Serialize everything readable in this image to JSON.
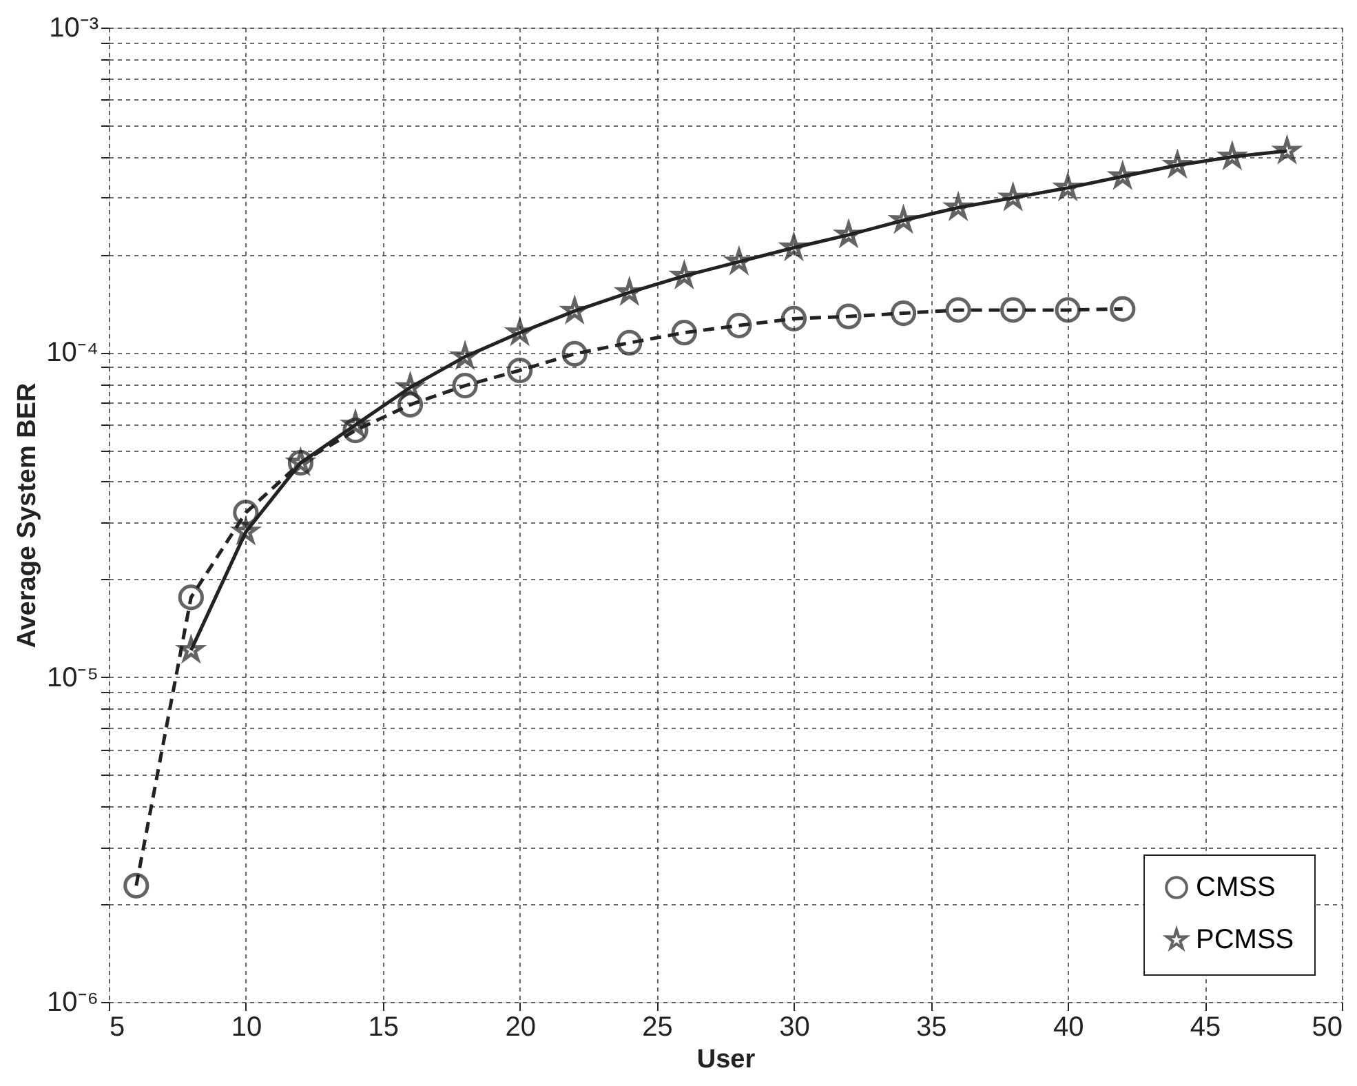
{
  "chart_data": {
    "type": "line",
    "xlabel": "User",
    "ylabel": "Average System BER",
    "log": "y",
    "grid": true,
    "legend": "bottom right",
    "xlim": [
      5,
      50
    ],
    "xticks": [
      5,
      10,
      15,
      20,
      25,
      30,
      35,
      40,
      45,
      50
    ],
    "ylim": [
      1e-06,
      0.001
    ],
    "yticks": [
      {
        "value": 1e-06,
        "label": "10⁻⁶"
      },
      {
        "value": 2e-06,
        "label": null
      },
      {
        "value": 3e-06,
        "label": null
      },
      {
        "value": 4e-06,
        "label": null
      },
      {
        "value": 5e-06,
        "label": null
      },
      {
        "value": 6e-06,
        "label": null
      },
      {
        "value": 7e-06,
        "label": null
      },
      {
        "value": 8e-06,
        "label": null
      },
      {
        "value": 9e-06,
        "label": null
      },
      {
        "value": 1e-05,
        "label": "10⁻⁵"
      },
      {
        "value": 2e-05,
        "label": null
      },
      {
        "value": 3e-05,
        "label": null
      },
      {
        "value": 4e-05,
        "label": null
      },
      {
        "value": 5e-05,
        "label": null
      },
      {
        "value": 6e-05,
        "label": null
      },
      {
        "value": 7e-05,
        "label": null
      },
      {
        "value": 8e-05,
        "label": null
      },
      {
        "value": 9e-05,
        "label": null
      },
      {
        "value": 0.0001,
        "label": "10⁻⁴"
      },
      {
        "value": 0.0002,
        "label": null
      },
      {
        "value": 0.0003,
        "label": null
      },
      {
        "value": 0.0004,
        "label": null
      },
      {
        "value": 0.0005,
        "label": null
      },
      {
        "value": 0.0006,
        "label": null
      },
      {
        "value": 0.0007,
        "label": null
      },
      {
        "value": 0.0008,
        "label": null
      },
      {
        "value": 0.0009,
        "label": null
      },
      {
        "value": 0.001,
        "label": "10⁻³"
      }
    ],
    "series": [
      {
        "name": "CMSS",
        "color": "#222222",
        "marker": "circle",
        "line_style": "dashed",
        "x": [
          6,
          8,
          10,
          12,
          14,
          16,
          18,
          20,
          22,
          24,
          26,
          28,
          30,
          32,
          34,
          36,
          38,
          40,
          42
        ],
        "values": [
          2.28e-06,
          1.76e-05,
          3.21e-05,
          4.57e-05,
          5.75e-05,
          6.9e-05,
          7.9e-05,
          8.8e-05,
          9.9e-05,
          0.000107,
          0.000115,
          0.000121,
          0.000127,
          0.000129,
          0.000132,
          0.000135,
          0.000135,
          0.000135,
          0.000136
        ]
      },
      {
        "name": "PCMSS",
        "color": "#222222",
        "marker": "star",
        "line_style": "solid",
        "x": [
          8,
          10,
          12,
          14,
          16,
          18,
          20,
          22,
          24,
          26,
          28,
          30,
          32,
          34,
          36,
          38,
          40,
          42,
          44,
          46,
          48
        ],
        "values": [
          1.21e-05,
          2.8e-05,
          4.57e-05,
          5.98e-05,
          7.8e-05,
          9.7e-05,
          0.000115,
          0.000134,
          0.000153,
          0.000172,
          0.00019,
          0.00021,
          0.00023,
          0.000255,
          0.000279,
          0.000299,
          0.000321,
          0.000348,
          0.000377,
          0.0004,
          0.000417
        ]
      }
    ]
  }
}
